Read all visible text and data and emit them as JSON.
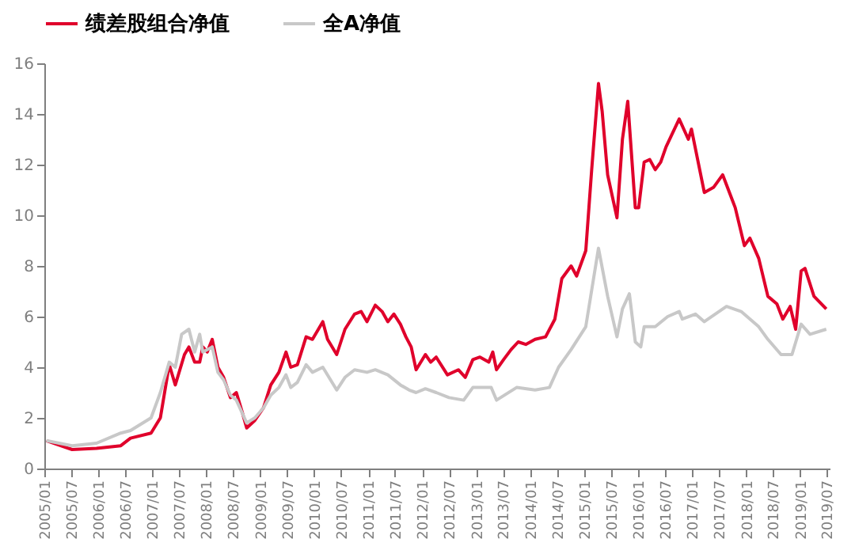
{
  "chart_data": {
    "type": "line",
    "legend": "top",
    "xlim": [
      "2005-01-01",
      "2019-07-20"
    ],
    "ylim": [
      0,
      16
    ],
    "yticks": [
      0,
      2,
      4,
      6,
      8,
      10,
      12,
      14,
      16
    ],
    "xticks": [
      {
        "value": "2005-01",
        "label": "2005/01"
      },
      {
        "value": "2005-07",
        "label": "2005/07"
      },
      {
        "value": "2006-01",
        "label": "2006/01"
      },
      {
        "value": "2006-07",
        "label": "2006/07"
      },
      {
        "value": "2007-01",
        "label": "2007/01"
      },
      {
        "value": "2007-07",
        "label": "2007/07"
      },
      {
        "value": "2008-01",
        "label": "2008/01"
      },
      {
        "value": "2008-07",
        "label": "2008/07"
      },
      {
        "value": "2009-01",
        "label": "2009/01"
      },
      {
        "value": "2009-07",
        "label": "2009/07"
      },
      {
        "value": "2010-01",
        "label": "2010/01"
      },
      {
        "value": "2010-07",
        "label": "2010/07"
      },
      {
        "value": "2011-01",
        "label": "2011/01"
      },
      {
        "value": "2011-07",
        "label": "2011/07"
      },
      {
        "value": "2012-01",
        "label": "2012/01"
      },
      {
        "value": "2012-07",
        "label": "2012/07"
      },
      {
        "value": "2013-01",
        "label": "2013/01"
      },
      {
        "value": "2013-07",
        "label": "2013/07"
      },
      {
        "value": "2014-01",
        "label": "2014/01"
      },
      {
        "value": "2014-07",
        "label": "2014/07"
      },
      {
        "value": "2015-01",
        "label": "2015/01"
      },
      {
        "value": "2015-07",
        "label": "2015/07"
      },
      {
        "value": "2016-01",
        "label": "2016/01"
      },
      {
        "value": "2016-07",
        "label": "2016/07"
      },
      {
        "value": "2017-01",
        "label": "2017/01"
      },
      {
        "value": "2017-07",
        "label": "2017/07"
      },
      {
        "value": "2018-01",
        "label": "2018/01"
      },
      {
        "value": "2018-07",
        "label": "2018/07"
      },
      {
        "value": "2019-01",
        "label": "2019/01"
      },
      {
        "value": "2019-07",
        "label": "2019/07"
      }
    ],
    "series": [
      {
        "name": "绩差股组合净值",
        "color": "#e0002b",
        "x": [
          "2005-01-15",
          "2005-07-08",
          "2005-12-20",
          "2006-06-02",
          "2006-08-07",
          "2006-12-24",
          "2007-02-25",
          "2007-04-26",
          "2007-06-06",
          "2007-08-07",
          "2007-09-06",
          "2007-10-15",
          "2007-11-18",
          "2007-12-09",
          "2008-01-08",
          "2008-02-11",
          "2008-03-20",
          "2008-04-28",
          "2008-06-13",
          "2008-07-23",
          "2008-09-02",
          "2008-10-01",
          "2008-11-25",
          "2009-01-23",
          "2009-03-13",
          "2009-05-07",
          "2009-06-24",
          "2009-07-26",
          "2009-09-09",
          "2009-11-07",
          "2009-12-20",
          "2010-02-28",
          "2010-04-01",
          "2010-06-02",
          "2010-07-28",
          "2010-10-01",
          "2010-11-14",
          "2010-12-24",
          "2011-02-18",
          "2011-04-05",
          "2011-05-14",
          "2011-06-24",
          "2011-08-07",
          "2011-09-13",
          "2011-10-19",
          "2011-11-21",
          "2012-01-23",
          "2012-02-28",
          "2012-04-05",
          "2012-06-20",
          "2012-09-02",
          "2012-10-19",
          "2012-12-09",
          "2013-01-26",
          "2013-03-27",
          "2013-04-23",
          "2013-05-18",
          "2013-07-05",
          "2013-08-25",
          "2013-10-12",
          "2013-12-02",
          "2014-02-03",
          "2014-04-15",
          "2014-06-17",
          "2014-08-03",
          "2014-10-05",
          "2014-11-11",
          "2015-01-12",
          "2015-02-21",
          "2015-04-08",
          "2015-05-03",
          "2015-06-09",
          "2015-08-11",
          "2015-09-17",
          "2015-10-23",
          "2015-12-13",
          "2016-01-05",
          "2016-02-11",
          "2016-03-20",
          "2016-04-26",
          "2016-06-02",
          "2016-07-08",
          "2016-10-05",
          "2016-12-06",
          "2016-12-27",
          "2017-03-24",
          "2017-05-25",
          "2017-07-26",
          "2017-10-19",
          "2017-12-20",
          "2018-01-26",
          "2018-03-27",
          "2018-05-28",
          "2018-07-28",
          "2018-09-06",
          "2018-10-26",
          "2018-12-02",
          "2019-01-08",
          "2019-02-03",
          "2019-04-05",
          "2019-06-27"
        ],
        "values": [
          1.1,
          0.75,
          0.8,
          0.9,
          1.2,
          1.4,
          2.0,
          4.1,
          3.3,
          4.5,
          4.8,
          4.2,
          4.2,
          4.8,
          4.6,
          5.1,
          4.0,
          3.6,
          2.8,
          3.0,
          2.2,
          1.6,
          1.9,
          2.4,
          3.3,
          3.8,
          4.6,
          4.0,
          4.1,
          5.2,
          5.1,
          5.8,
          5.1,
          4.5,
          5.5,
          6.1,
          6.2,
          5.8,
          6.45,
          6.2,
          5.8,
          6.1,
          5.7,
          5.2,
          4.8,
          3.9,
          4.5,
          4.2,
          4.4,
          3.7,
          3.9,
          3.6,
          4.3,
          4.4,
          4.2,
          4.6,
          3.9,
          4.3,
          4.7,
          5.0,
          4.9,
          5.1,
          5.2,
          5.9,
          7.5,
          8.0,
          7.6,
          8.6,
          11.8,
          15.2,
          14.1,
          11.6,
          9.9,
          13.0,
          14.5,
          10.3,
          10.3,
          12.1,
          12.2,
          11.8,
          12.1,
          12.7,
          13.8,
          13.0,
          13.4,
          10.9,
          11.1,
          11.6,
          10.3,
          8.8,
          9.1,
          8.3,
          6.8,
          6.5,
          5.9,
          6.4,
          5.5,
          7.8,
          7.9,
          6.8,
          6.3
        ]
      },
      {
        "name": "全A净值",
        "color": "#c8c8c8",
        "x": [
          "2005-01-15",
          "2005-07-08",
          "2005-12-20",
          "2006-06-02",
          "2006-08-07",
          "2006-12-24",
          "2007-02-25",
          "2007-04-26",
          "2007-06-06",
          "2007-07-19",
          "2007-09-06",
          "2007-10-15",
          "2007-11-18",
          "2007-12-09",
          "2008-02-11",
          "2008-03-20",
          "2008-04-28",
          "2008-06-13",
          "2008-07-23",
          "2008-10-01",
          "2008-11-25",
          "2009-01-23",
          "2009-03-13",
          "2009-05-07",
          "2009-06-24",
          "2009-07-26",
          "2009-09-09",
          "2009-11-07",
          "2009-12-20",
          "2010-02-28",
          "2010-06-02",
          "2010-07-28",
          "2010-10-01",
          "2010-12-24",
          "2011-02-18",
          "2011-05-14",
          "2011-08-07",
          "2011-10-05",
          "2011-11-21",
          "2012-01-23",
          "2012-04-05",
          "2012-07-01",
          "2012-10-08",
          "2012-12-09",
          "2013-04-12",
          "2013-05-18",
          "2013-10-01",
          "2014-02-03",
          "2014-05-11",
          "2014-07-12",
          "2014-10-05",
          "2015-01-12",
          "2015-04-08",
          "2015-06-09",
          "2015-08-11",
          "2015-09-17",
          "2015-11-03",
          "2015-12-13",
          "2016-01-19",
          "2016-02-11",
          "2016-04-26",
          "2016-07-19",
          "2016-10-05",
          "2016-10-26",
          "2017-01-23",
          "2017-03-24",
          "2017-08-21",
          "2017-11-28",
          "2018-03-27",
          "2018-05-28",
          "2018-08-25",
          "2018-11-07",
          "2019-01-08",
          "2019-03-09",
          "2019-06-27"
        ],
        "values": [
          1.1,
          0.9,
          1.0,
          1.4,
          1.5,
          2.0,
          3.0,
          4.2,
          4.0,
          5.3,
          5.5,
          4.6,
          5.3,
          4.6,
          4.8,
          3.8,
          3.5,
          2.9,
          2.7,
          1.8,
          2.0,
          2.4,
          2.9,
          3.2,
          3.7,
          3.2,
          3.4,
          4.1,
          3.8,
          4.0,
          3.1,
          3.6,
          3.9,
          3.8,
          3.9,
          3.7,
          3.3,
          3.1,
          3.0,
          3.15,
          3.0,
          2.8,
          2.7,
          3.2,
          3.2,
          2.7,
          3.2,
          3.1,
          3.2,
          4.0,
          4.7,
          5.6,
          8.7,
          6.8,
          5.2,
          6.3,
          6.9,
          5.0,
          4.8,
          5.6,
          5.6,
          6.0,
          6.2,
          5.9,
          6.1,
          5.8,
          6.4,
          6.2,
          5.6,
          5.1,
          4.5,
          4.5,
          5.7,
          5.3,
          5.5
        ]
      }
    ]
  }
}
